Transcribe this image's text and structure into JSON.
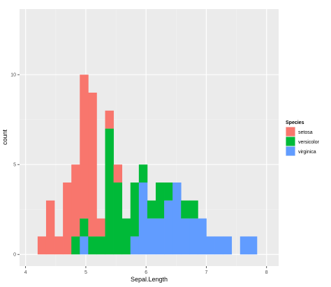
{
  "chart_data": {
    "type": "bar",
    "stacked": true,
    "xlabel": "Sepal.Length",
    "ylabel": "count",
    "xlim": [
      3.9,
      8.2
    ],
    "ylim": [
      -0.65,
      13.65
    ],
    "xticks": [
      4,
      5,
      6,
      7,
      8
    ],
    "yticks": [
      0,
      5,
      10
    ],
    "grid": true,
    "legend_position": "right",
    "legend_title": "Species",
    "bins": [
      {
        "x0": 4.2,
        "x1": 4.34
      },
      {
        "x0": 4.34,
        "x1": 4.48
      },
      {
        "x0": 4.48,
        "x1": 4.62
      },
      {
        "x0": 4.62,
        "x1": 4.76
      },
      {
        "x0": 4.76,
        "x1": 4.9
      },
      {
        "x0": 4.9,
        "x1": 5.04
      },
      {
        "x0": 5.04,
        "x1": 5.18
      },
      {
        "x0": 5.18,
        "x1": 5.32
      },
      {
        "x0": 5.32,
        "x1": 5.46
      },
      {
        "x0": 5.46,
        "x1": 5.6
      },
      {
        "x0": 5.6,
        "x1": 5.74
      },
      {
        "x0": 5.74,
        "x1": 5.88
      },
      {
        "x0": 5.88,
        "x1": 6.02
      },
      {
        "x0": 6.02,
        "x1": 6.16
      },
      {
        "x0": 6.16,
        "x1": 6.3
      },
      {
        "x0": 6.3,
        "x1": 6.44
      },
      {
        "x0": 6.44,
        "x1": 6.58
      },
      {
        "x0": 6.58,
        "x1": 6.72
      },
      {
        "x0": 6.72,
        "x1": 6.86
      },
      {
        "x0": 6.86,
        "x1": 7.0
      },
      {
        "x0": 7.0,
        "x1": 7.14
      },
      {
        "x0": 7.14,
        "x1": 7.28
      },
      {
        "x0": 7.28,
        "x1": 7.42
      },
      {
        "x0": 7.42,
        "x1": 7.56
      },
      {
        "x0": 7.56,
        "x1": 7.7
      },
      {
        "x0": 7.7,
        "x1": 7.84
      },
      {
        "x0": 7.84,
        "x1": 7.98
      }
    ],
    "series": [
      {
        "name": "setosa",
        "color": "#F8766D",
        "values": [
          1,
          3,
          1,
          4,
          4,
          8,
          8,
          1,
          1,
          1,
          0,
          0,
          0,
          0,
          0,
          0,
          0,
          0,
          0,
          0,
          0,
          0,
          0,
          0,
          0,
          0,
          0
        ]
      },
      {
        "name": "versicolor",
        "color": "#00BA38",
        "values": [
          0,
          0,
          0,
          0,
          1,
          1,
          1,
          1,
          7,
          4,
          2,
          3,
          1,
          1,
          2,
          1,
          0,
          1,
          1,
          0,
          0,
          0,
          0,
          0,
          0,
          0,
          0
        ]
      },
      {
        "name": "virginica",
        "color": "#619CFF",
        "values": [
          0,
          0,
          0,
          0,
          0,
          1,
          0,
          0,
          0,
          0,
          0,
          1,
          4,
          2,
          2,
          3,
          4,
          2,
          2,
          2,
          1,
          1,
          1,
          0,
          1,
          1,
          0
        ]
      }
    ]
  },
  "legend": {
    "title": "Species",
    "items": [
      {
        "label": "setosa",
        "color": "#F8766D"
      },
      {
        "label": "versicolor",
        "color": "#00BA38"
      },
      {
        "label": "virginica",
        "color": "#619CFF"
      }
    ]
  },
  "colors": {
    "panel_background": "#EBEBEB",
    "grid_major": "#FFFFFF",
    "grid_minor": "#F2F2F2"
  }
}
